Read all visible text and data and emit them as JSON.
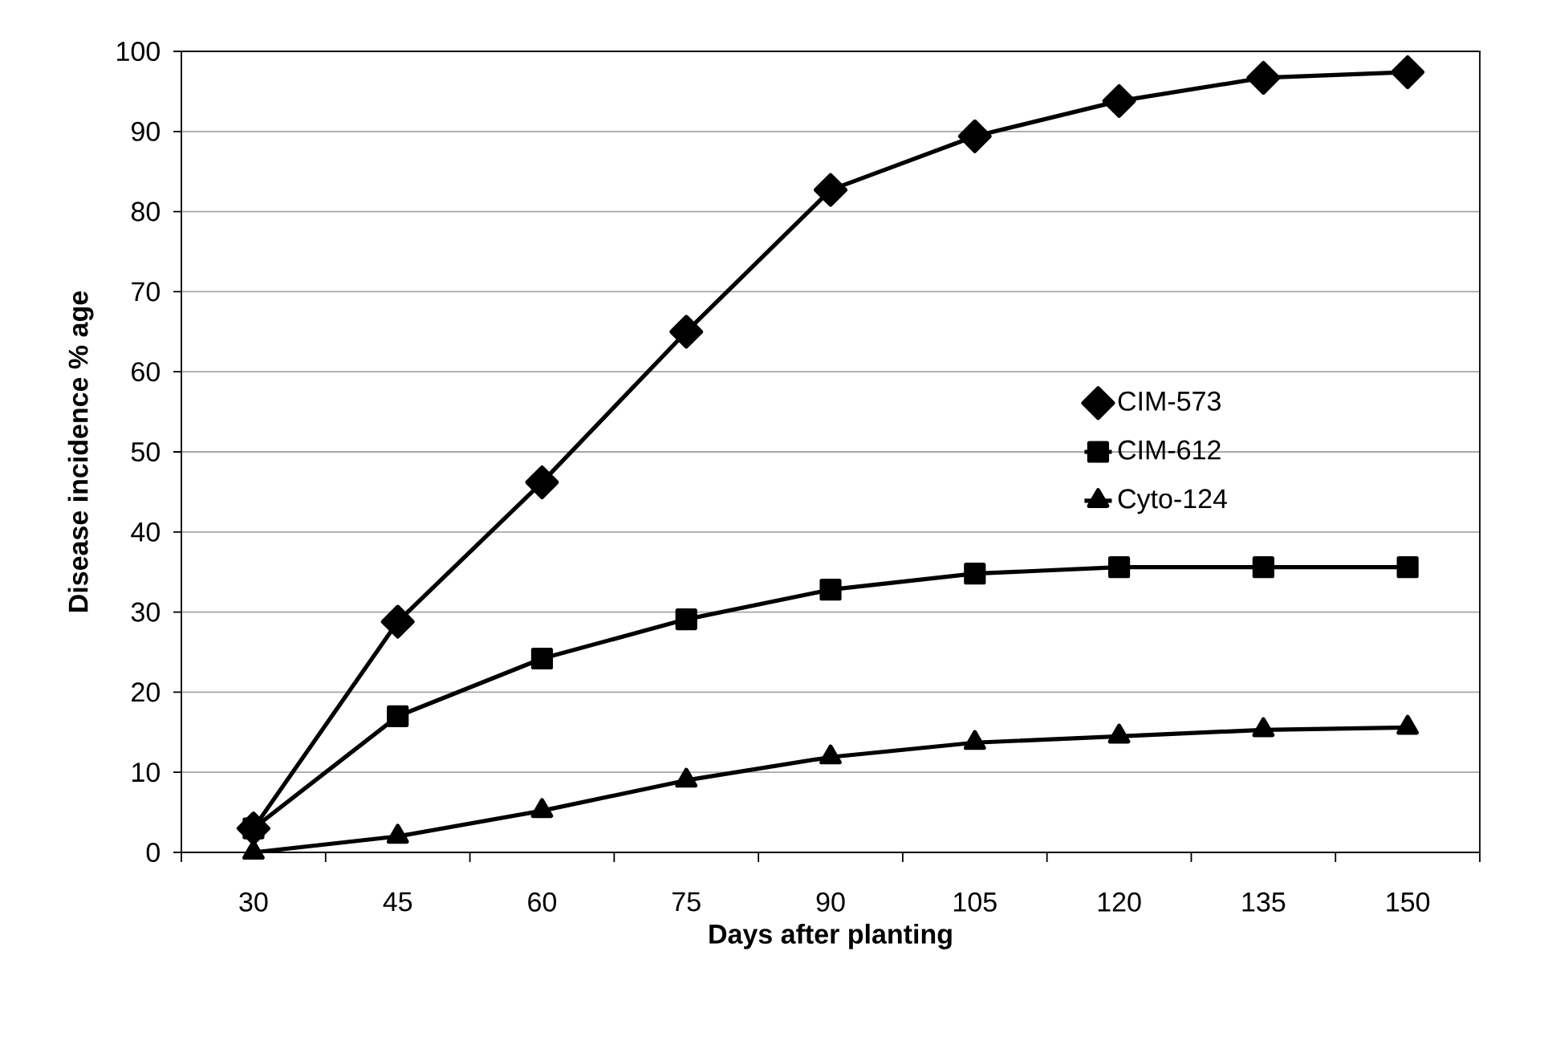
{
  "chart_data": {
    "type": "line",
    "xlabel": "Days after planting",
    "ylabel": "Disease incidence % age",
    "categories": [
      "30",
      "45",
      "60",
      "75",
      "90",
      "105",
      "120",
      "135",
      "150"
    ],
    "series": [
      {
        "name": "CIM-573",
        "color": "#000000",
        "marker": "diamond",
        "values": [
          3,
          28.8,
          46.2,
          65,
          82.7,
          89.4,
          93.8,
          96.7,
          97.4
        ]
      },
      {
        "name": "CIM-612",
        "color": "#000000",
        "marker": "square",
        "values": [
          3,
          17,
          24.2,
          29.1,
          32.8,
          34.8,
          35.6,
          35.6,
          35.6
        ]
      },
      {
        "name": "Cyto-124",
        "color": "#000000",
        "marker": "triangle",
        "values": [
          0,
          2,
          5.2,
          9,
          11.9,
          13.7,
          14.5,
          15.3,
          15.6
        ]
      }
    ],
    "ylim": [
      0,
      100
    ],
    "yticks": [
      0,
      10,
      20,
      30,
      40,
      50,
      60,
      70,
      80,
      90,
      100
    ],
    "grid": "y",
    "legend": "right",
    "line_style": "solid"
  }
}
